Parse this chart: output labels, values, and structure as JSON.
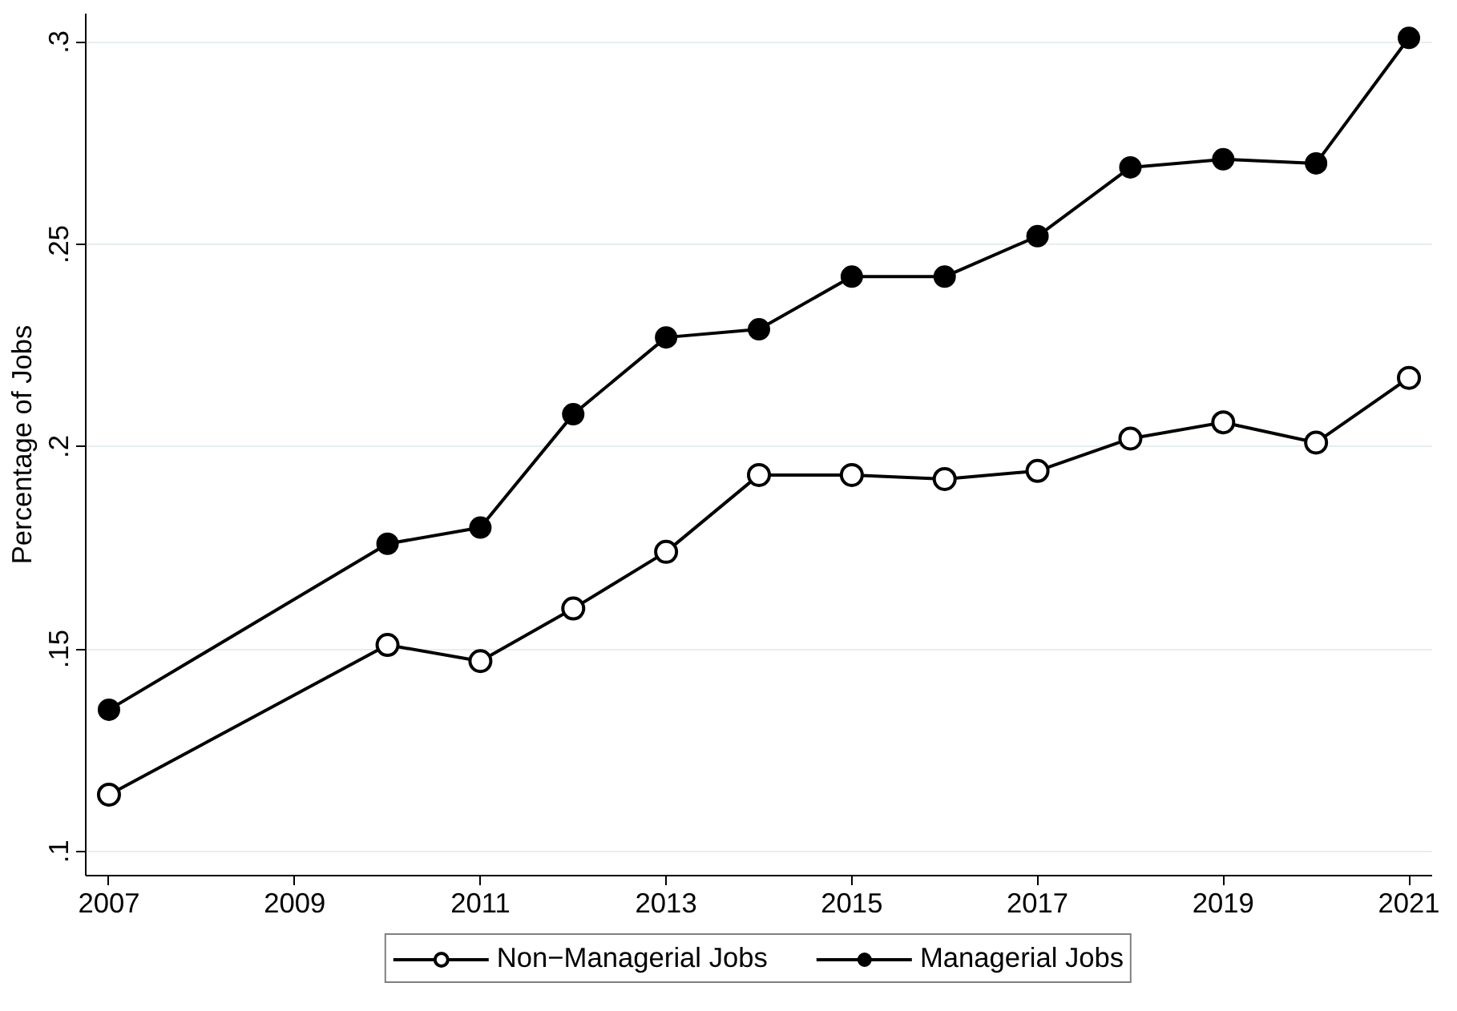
{
  "chart_data": {
    "type": "line",
    "ylabel": "Percentage of Jobs",
    "x": [
      2007,
      2010,
      2011,
      2012,
      2013,
      2014,
      2015,
      2016,
      2017,
      2018,
      2019,
      2020,
      2021
    ],
    "series": [
      {
        "name": "Non−Managerial Jobs",
        "color": "#000000",
        "marker": "open_circle",
        "values": [
          0.114,
          0.151,
          0.147,
          0.16,
          0.174,
          0.193,
          0.193,
          0.192,
          0.194,
          0.202,
          0.206,
          0.201,
          0.217
        ]
      },
      {
        "name": "Managerial Jobs",
        "color": "#000000",
        "marker": "circle",
        "values": [
          0.135,
          0.176,
          0.18,
          0.208,
          0.227,
          0.229,
          0.242,
          0.242,
          0.252,
          0.269,
          0.271,
          0.27,
          0.301
        ]
      }
    ],
    "xlim": [
      2006.75,
      2021.25
    ],
    "xticks": [
      2007,
      2009,
      2011,
      2013,
      2015,
      2017,
      2019,
      2021
    ],
    "ylim": [
      0.094,
      0.307
    ],
    "yticks": [
      {
        "value": 0.1,
        "label": ".1"
      },
      {
        "value": 0.15,
        "label": ".15"
      },
      {
        "value": 0.2,
        "label": ".2"
      },
      {
        "value": 0.25,
        "label": ".25"
      },
      {
        "value": 0.3,
        "label": ".3"
      }
    ],
    "grid": "y",
    "legend": "bottom",
    "line_style": "solid"
  }
}
